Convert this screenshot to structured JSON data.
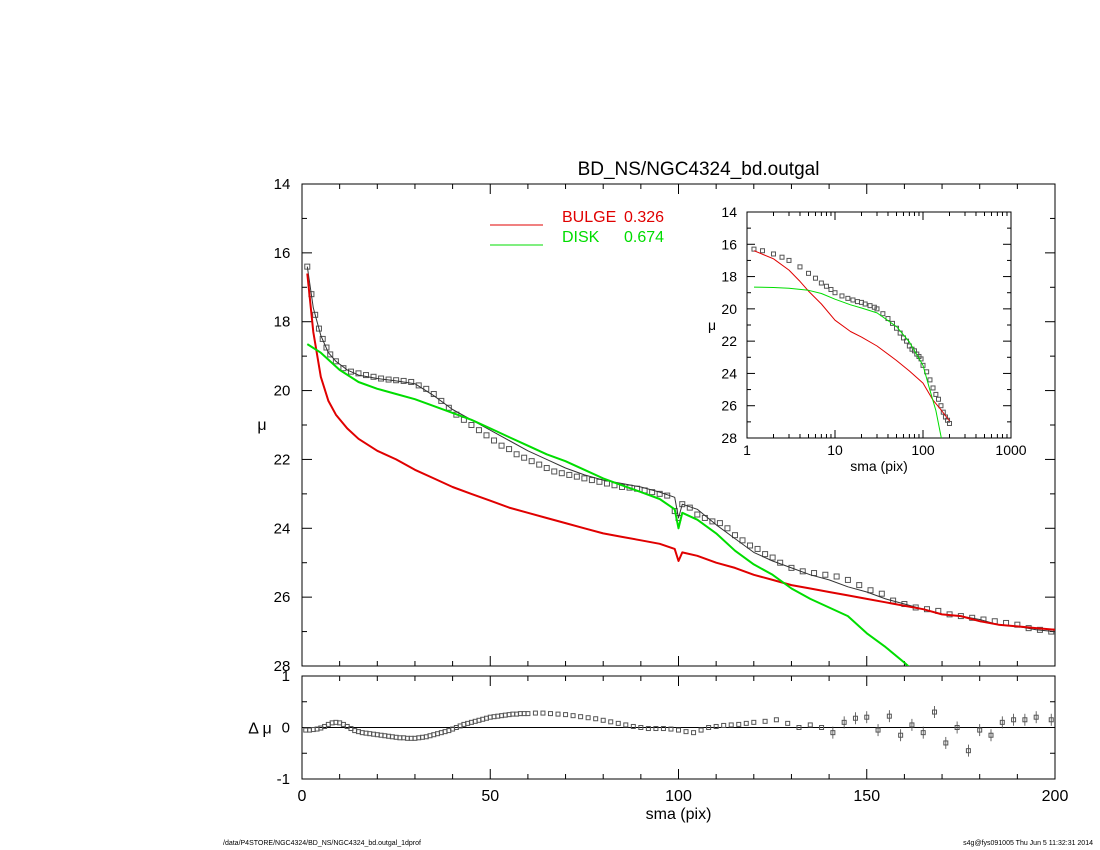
{
  "chart_data": [
    {
      "panel": "main",
      "type": "scatter",
      "title": "BD_NS/NGC4324_bd.outgal",
      "xlabel": "",
      "ylabel": "μ",
      "xlim": [
        0,
        200
      ],
      "ylim": [
        28,
        14
      ],
      "y_inverted": true,
      "yticks": [
        "14",
        "16",
        "18",
        "20",
        "22",
        "24",
        "26",
        "28"
      ],
      "legend": {
        "placement": "top-center",
        "entries": [
          {
            "name": "BULGE",
            "value": "0.326",
            "color": "#e00000"
          },
          {
            "name": "DISK",
            "value": "0.674",
            "color": "#00dd00"
          }
        ]
      },
      "series": [
        {
          "name": "data",
          "style": "square-markers",
          "color": "#555555",
          "x": [
            1.4,
            2.5,
            3.5,
            4.5,
            5.5,
            6.5,
            7.5,
            9,
            11,
            13,
            15,
            17,
            19,
            21,
            23,
            25,
            27,
            29,
            31,
            33,
            35,
            37,
            39,
            41,
            43,
            45,
            47,
            49,
            51,
            53,
            55,
            57,
            59,
            61,
            63,
            65,
            67,
            69,
            71,
            73,
            75,
            77,
            79,
            81,
            83,
            85,
            87,
            89,
            91,
            93,
            95,
            97,
            99,
            100,
            101,
            103,
            105,
            107,
            109,
            111,
            113,
            115,
            117,
            119,
            121,
            123,
            125,
            127,
            130,
            133,
            136,
            139,
            142,
            145,
            148,
            151,
            154,
            157,
            160,
            163,
            166,
            169,
            172,
            175,
            178,
            181,
            184,
            187,
            190,
            193,
            196,
            199
          ],
          "y": [
            16.4,
            17.2,
            17.8,
            18.2,
            18.5,
            18.75,
            18.95,
            19.15,
            19.35,
            19.45,
            19.5,
            19.55,
            19.6,
            19.65,
            19.68,
            19.7,
            19.72,
            19.75,
            19.85,
            19.95,
            20.1,
            20.3,
            20.5,
            20.7,
            20.85,
            21.0,
            21.15,
            21.3,
            21.45,
            21.6,
            21.7,
            21.85,
            21.95,
            22.05,
            22.15,
            22.25,
            22.35,
            22.4,
            22.45,
            22.5,
            22.55,
            22.6,
            22.65,
            22.7,
            22.75,
            22.8,
            22.82,
            22.85,
            22.9,
            22.95,
            23.0,
            23.05,
            23.5,
            23.7,
            23.3,
            23.4,
            23.6,
            23.7,
            23.8,
            23.85,
            24.0,
            24.2,
            24.35,
            24.5,
            24.6,
            24.75,
            24.85,
            25.0,
            25.15,
            25.25,
            25.3,
            25.35,
            25.4,
            25.5,
            25.65,
            25.8,
            25.9,
            26.1,
            26.2,
            26.3,
            26.35,
            26.4,
            26.5,
            26.55,
            26.6,
            26.65,
            26.7,
            26.75,
            26.8,
            26.9,
            26.95,
            27.0
          ]
        },
        {
          "name": "model",
          "style": "thin-line",
          "color": "#333333",
          "x": [
            1.4,
            3,
            5,
            7,
            9,
            12,
            15,
            20,
            25,
            30,
            35,
            40,
            45,
            50,
            55,
            60,
            65,
            70,
            75,
            80,
            85,
            90,
            95,
            99,
            100,
            101,
            105,
            110,
            115,
            120,
            125,
            130,
            135,
            140,
            145,
            150,
            155,
            160,
            165,
            170,
            175,
            180,
            185,
            190,
            195,
            200
          ],
          "y": [
            16.4,
            17.6,
            18.4,
            18.9,
            19.15,
            19.4,
            19.55,
            19.65,
            19.72,
            19.8,
            20.15,
            20.55,
            20.85,
            21.15,
            21.45,
            21.75,
            22.0,
            22.25,
            22.45,
            22.6,
            22.7,
            22.8,
            22.95,
            23.1,
            23.7,
            23.3,
            23.45,
            23.9,
            24.3,
            24.7,
            24.95,
            25.15,
            25.35,
            25.5,
            25.7,
            25.85,
            26.05,
            26.2,
            26.35,
            26.5,
            26.55,
            26.65,
            26.8,
            26.85,
            26.95,
            27.0
          ]
        },
        {
          "name": "BULGE",
          "style": "line",
          "color": "#e00000",
          "x": [
            1.4,
            3,
            5,
            7,
            9,
            12,
            15,
            20,
            25,
            30,
            35,
            40,
            45,
            50,
            55,
            60,
            65,
            70,
            75,
            80,
            85,
            90,
            95,
            99,
            100,
            101,
            105,
            110,
            115,
            120,
            125,
            130,
            135,
            140,
            145,
            150,
            155,
            160,
            165,
            170,
            175,
            180,
            185,
            190,
            195,
            200
          ],
          "y": [
            16.6,
            18.3,
            19.6,
            20.3,
            20.7,
            21.1,
            21.4,
            21.75,
            22.0,
            22.3,
            22.55,
            22.8,
            23.0,
            23.2,
            23.4,
            23.55,
            23.7,
            23.85,
            24.0,
            24.15,
            24.25,
            24.35,
            24.45,
            24.6,
            24.95,
            24.7,
            24.8,
            25.0,
            25.15,
            25.35,
            25.5,
            25.65,
            25.75,
            25.85,
            25.95,
            26.05,
            26.15,
            26.25,
            26.35,
            26.5,
            26.55,
            26.7,
            26.8,
            26.85,
            26.9,
            26.95
          ]
        },
        {
          "name": "DISK",
          "style": "line",
          "color": "#00dd00",
          "x": [
            1.4,
            5,
            10,
            15,
            20,
            25,
            30,
            35,
            40,
            45,
            50,
            55,
            60,
            65,
            70,
            75,
            80,
            85,
            90,
            95,
            99,
            100,
            101,
            105,
            110,
            115,
            120,
            125,
            130,
            135,
            140,
            145,
            150,
            155,
            160,
            165
          ],
          "y": [
            18.65,
            18.9,
            19.4,
            19.75,
            19.95,
            20.1,
            20.25,
            20.45,
            20.65,
            20.85,
            21.1,
            21.35,
            21.6,
            21.85,
            22.05,
            22.3,
            22.55,
            22.75,
            22.95,
            23.15,
            23.45,
            24.0,
            23.55,
            23.75,
            24.15,
            24.65,
            25.05,
            25.35,
            25.75,
            26.05,
            26.3,
            26.55,
            27.05,
            27.45,
            27.9,
            28.4
          ]
        }
      ]
    },
    {
      "panel": "residual",
      "type": "scatter",
      "xlabel": "sma (pix)",
      "ylabel": "Δ μ",
      "xlim": [
        0,
        200
      ],
      "ylim": [
        -1,
        1
      ],
      "xticks": [
        "0",
        "50",
        "100",
        "150",
        "200"
      ],
      "yticks": [
        "1",
        "0",
        "-1"
      ],
      "series": [
        {
          "name": "residual",
          "style": "square-markers-with-errorbars",
          "color": "#555555",
          "x": [
            1,
            2,
            3,
            4,
            5,
            6,
            7,
            8,
            9,
            10,
            11,
            12,
            13,
            14,
            15,
            16,
            17,
            18,
            19,
            20,
            21,
            22,
            23,
            24,
            25,
            26,
            27,
            28,
            29,
            30,
            31,
            32,
            33,
            34,
            35,
            36,
            37,
            38,
            39,
            40,
            41,
            42,
            43,
            44,
            45,
            46,
            47,
            48,
            49,
            50,
            51,
            52,
            53,
            54,
            55,
            56,
            57,
            58,
            59,
            60,
            62,
            64,
            66,
            68,
            70,
            72,
            74,
            76,
            78,
            80,
            82,
            84,
            86,
            88,
            90,
            92,
            94,
            96,
            98,
            100,
            102,
            104,
            106,
            108,
            110,
            112,
            114,
            116,
            118,
            120,
            123,
            126,
            129,
            132,
            135,
            138,
            141,
            144,
            147,
            150,
            153,
            156,
            159,
            162,
            165,
            168,
            171,
            174,
            177,
            180,
            183,
            186,
            189,
            192,
            195,
            199
          ],
          "y": [
            -0.05,
            -0.05,
            -0.04,
            -0.03,
            -0.01,
            0.02,
            0.06,
            0.09,
            0.1,
            0.09,
            0.06,
            0.02,
            -0.02,
            -0.06,
            -0.08,
            -0.1,
            -0.11,
            -0.12,
            -0.13,
            -0.14,
            -0.15,
            -0.16,
            -0.17,
            -0.18,
            -0.19,
            -0.2,
            -0.2,
            -0.21,
            -0.21,
            -0.21,
            -0.2,
            -0.19,
            -0.18,
            -0.16,
            -0.14,
            -0.12,
            -0.1,
            -0.08,
            -0.06,
            -0.03,
            0.0,
            0.03,
            0.06,
            0.08,
            0.1,
            0.12,
            0.14,
            0.16,
            0.18,
            0.2,
            0.21,
            0.22,
            0.23,
            0.24,
            0.25,
            0.26,
            0.26,
            0.27,
            0.27,
            0.27,
            0.28,
            0.28,
            0.27,
            0.26,
            0.25,
            0.23,
            0.21,
            0.19,
            0.17,
            0.14,
            0.11,
            0.08,
            0.05,
            0.02,
            0.0,
            -0.02,
            -0.02,
            -0.02,
            -0.03,
            -0.05,
            -0.08,
            -0.1,
            -0.05,
            0.0,
            0.02,
            0.04,
            0.05,
            0.06,
            0.08,
            0.1,
            0.12,
            0.15,
            0.08,
            0.0,
            0.05,
            0.0,
            -0.1,
            0.1,
            0.18,
            0.2,
            -0.05,
            0.22,
            -0.15,
            0.05,
            -0.1,
            0.3,
            -0.3,
            0.0,
            -0.45,
            -0.05,
            -0.15,
            0.1,
            0.15,
            0.15,
            0.2,
            0.15
          ]
        }
      ]
    },
    {
      "panel": "inset",
      "type": "scatter",
      "xlabel": "sma (pix)",
      "ylabel": "μ",
      "xscale": "log",
      "xlim": [
        1,
        1000
      ],
      "ylim": [
        28,
        14
      ],
      "y_inverted": true,
      "xticks": [
        "1",
        "10",
        "100",
        "1000"
      ],
      "yticks": [
        "14",
        "16",
        "18",
        "20",
        "22",
        "24",
        "26",
        "28"
      ],
      "series": [
        {
          "name": "data",
          "style": "square-markers",
          "color": "#555555",
          "x": [
            1.2,
            1.5,
            2,
            2.5,
            3,
            4,
            5,
            6,
            7,
            8,
            9,
            10,
            12,
            14,
            16,
            18,
            20,
            22,
            25,
            28,
            30,
            35,
            40,
            45,
            50,
            55,
            60,
            65,
            70,
            75,
            80,
            85,
            90,
            95,
            100,
            110,
            120,
            130,
            140,
            150,
            160,
            170,
            180,
            190,
            200
          ],
          "y": [
            16.3,
            16.4,
            16.6,
            16.8,
            17.0,
            17.4,
            17.8,
            18.1,
            18.4,
            18.6,
            18.8,
            19.0,
            19.2,
            19.35,
            19.45,
            19.55,
            19.6,
            19.7,
            19.8,
            19.9,
            20.0,
            20.3,
            20.6,
            20.9,
            21.2,
            21.5,
            21.8,
            22.0,
            22.3,
            22.5,
            22.6,
            22.8,
            22.95,
            23.1,
            23.5,
            23.9,
            24.4,
            24.9,
            25.3,
            25.6,
            26.0,
            26.4,
            26.7,
            26.9,
            27.1
          ]
        },
        {
          "name": "BULGE",
          "style": "line",
          "color": "#e00000",
          "x": [
            1.2,
            2,
            3,
            4,
            5,
            7,
            10,
            15,
            20,
            30,
            50,
            70,
            100,
            130,
            160,
            200
          ],
          "y": [
            16.4,
            16.9,
            17.6,
            18.3,
            18.9,
            19.7,
            20.7,
            21.4,
            21.75,
            22.3,
            23.2,
            23.85,
            24.6,
            25.65,
            26.25,
            26.95
          ]
        },
        {
          "name": "DISK",
          "style": "line",
          "color": "#00dd00",
          "x": [
            1.2,
            2,
            3,
            5,
            7,
            10,
            15,
            20,
            30,
            50,
            70,
            100,
            120,
            140,
            160,
            170
          ],
          "y": [
            18.65,
            18.68,
            18.72,
            18.85,
            19.05,
            19.4,
            19.75,
            19.95,
            20.25,
            21.1,
            22.05,
            23.5,
            25.05,
            26.3,
            27.9,
            28.4
          ]
        }
      ]
    }
  ],
  "footer": {
    "left": "/data/P4STORE/NGC4324/BD_NS/NGC4324_bd.outgal_1dprof",
    "right": "s4g@fys091005  Thu Jun  5 11:32:31 2014"
  }
}
